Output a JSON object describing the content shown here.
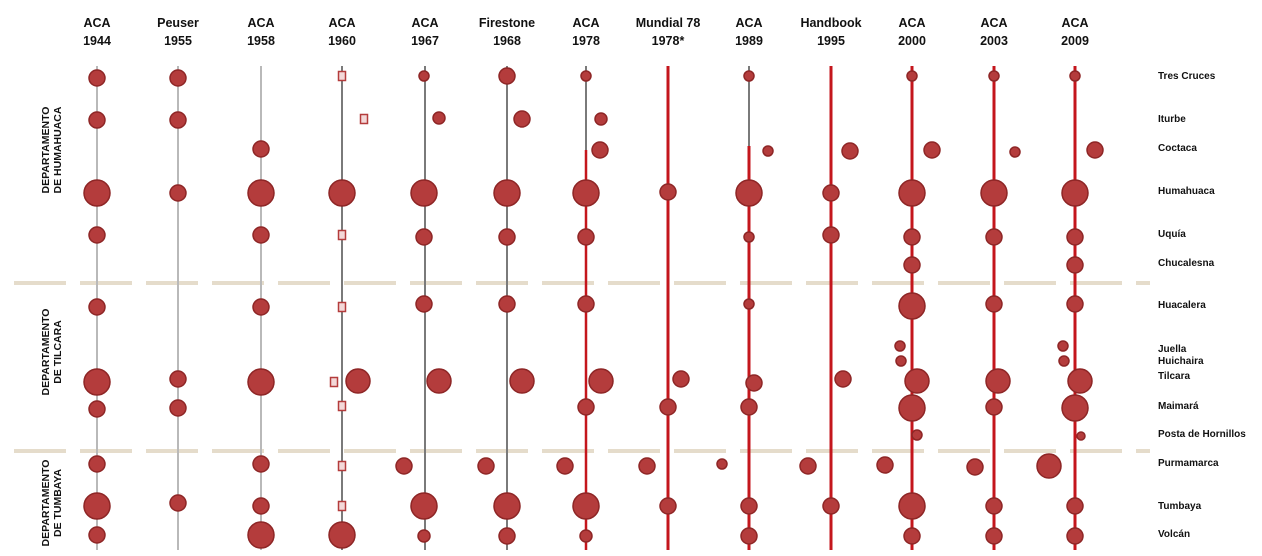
{
  "colors": {
    "dot_fill": "#b43c3c",
    "dot_stroke": "#8e2626",
    "line_grey": "#b9b9b9",
    "line_dark": "#7a7a7a",
    "line_red": "#c4161c",
    "divider": "#e5dccb",
    "marker_fill": "#f3d8d8"
  },
  "sources": [
    {
      "name": "ACA",
      "year": "1944"
    },
    {
      "name": "Peuser",
      "year": "1955"
    },
    {
      "name": "ACA",
      "year": "1958"
    },
    {
      "name": "ACA",
      "year": "1960"
    },
    {
      "name": "ACA",
      "year": "1967"
    },
    {
      "name": "Firestone",
      "year": "1968"
    },
    {
      "name": "ACA",
      "year": "1978"
    },
    {
      "name": "Mundial 78",
      "year": "1978*"
    },
    {
      "name": "ACA",
      "year": "1989"
    },
    {
      "name": "Handbook",
      "year": "1995"
    },
    {
      "name": "ACA",
      "year": "2000"
    },
    {
      "name": "ACA",
      "year": "2003"
    },
    {
      "name": "ACA",
      "year": "2009"
    }
  ],
  "towns": [
    {
      "label": "Tres Cruces"
    },
    {
      "label": "Iturbe"
    },
    {
      "label": "Coctaca"
    },
    {
      "label": "Humahuaca"
    },
    {
      "label": "Uquía"
    },
    {
      "label": "Chucalesna"
    },
    {
      "label": "Huacalera"
    },
    {
      "label": "Juella"
    },
    {
      "label": "Huichaira"
    },
    {
      "label": "Tilcara"
    },
    {
      "label": "Maimará"
    },
    {
      "label": "Posta de Hornillos"
    },
    {
      "label": "Purmamarca"
    },
    {
      "label": "Tumbaya"
    },
    {
      "label": "Volcán"
    }
  ],
  "departments": [
    {
      "line1": "DEPARTAMENTO",
      "line2": "DE HUMAHUACA"
    },
    {
      "line1": "DEPARTAMENTO",
      "line2": "DE TILCARA"
    },
    {
      "line1": "DEPARTAMENTO",
      "line2": "DE TUMBAYA"
    }
  ]
}
